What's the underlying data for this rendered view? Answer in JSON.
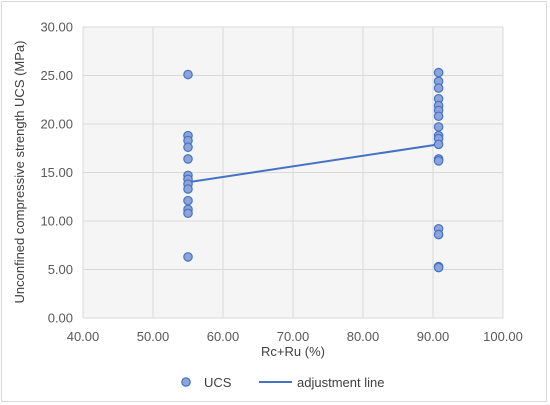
{
  "chart_data": {
    "type": "scatter",
    "title": "",
    "xlabel": "Rc+Ru (%)",
    "ylabel": "Unconfined compressive strength UCS (MPa)",
    "xlim": [
      40,
      100
    ],
    "ylim": [
      0,
      30
    ],
    "x_ticks": [
      "40.00",
      "50.00",
      "60.00",
      "70.00",
      "80.00",
      "90.00",
      "100.00"
    ],
    "y_ticks": [
      "0.00",
      "5.00",
      "10.00",
      "15.00",
      "20.00",
      "25.00",
      "30.00"
    ],
    "grid": "vertical-and-horizontal",
    "legend_position": "bottom",
    "colors": {
      "marker_fill": "#8ea4d8",
      "marker_edge": "#4472c4",
      "line": "#4472c4",
      "grid": "#d9d9d9",
      "plot_bg": "#f5f5f5"
    },
    "series": [
      {
        "name": "UCS",
        "kind": "scatter",
        "points": [
          [
            55,
            25.1
          ],
          [
            55,
            18.8
          ],
          [
            55,
            18.3
          ],
          [
            55,
            17.6
          ],
          [
            55,
            16.4
          ],
          [
            55,
            14.7
          ],
          [
            55,
            14.3
          ],
          [
            55,
            13.8
          ],
          [
            55,
            13.3
          ],
          [
            55,
            12.1
          ],
          [
            55,
            11.2
          ],
          [
            55,
            10.8
          ],
          [
            55,
            6.3
          ],
          [
            90.8,
            25.3
          ],
          [
            90.8,
            24.4
          ],
          [
            90.8,
            23.7
          ],
          [
            90.8,
            22.6
          ],
          [
            90.8,
            21.9
          ],
          [
            90.8,
            21.4
          ],
          [
            90.8,
            20.8
          ],
          [
            90.8,
            19.7
          ],
          [
            90.8,
            18.8
          ],
          [
            90.8,
            18.5
          ],
          [
            90.8,
            17.9
          ],
          [
            90.8,
            16.4
          ],
          [
            90.8,
            16.2
          ],
          [
            90.8,
            9.2
          ],
          [
            90.8,
            8.6
          ],
          [
            90.8,
            5.3
          ],
          [
            90.8,
            5.2
          ]
        ]
      },
      {
        "name": "adjustment line",
        "kind": "line",
        "points": [
          [
            55,
            14.0
          ],
          [
            90.8,
            17.9
          ]
        ]
      }
    ]
  }
}
